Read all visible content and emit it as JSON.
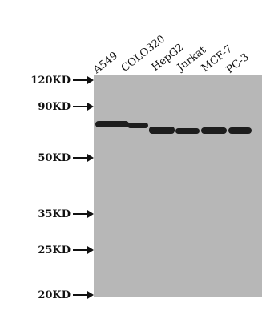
{
  "lanes": [
    "A549",
    "COLO320",
    "HepG2",
    "Jurkat",
    "MCF-7",
    "PC-3"
  ],
  "markers": [
    "120KD",
    "90KD",
    "50KD",
    "35KD",
    "25KD",
    "20KD"
  ],
  "colors": {
    "membrane": "#b7b7b7",
    "band": "#1d1d1d",
    "text": "#111111",
    "background": "#ffffff"
  }
}
